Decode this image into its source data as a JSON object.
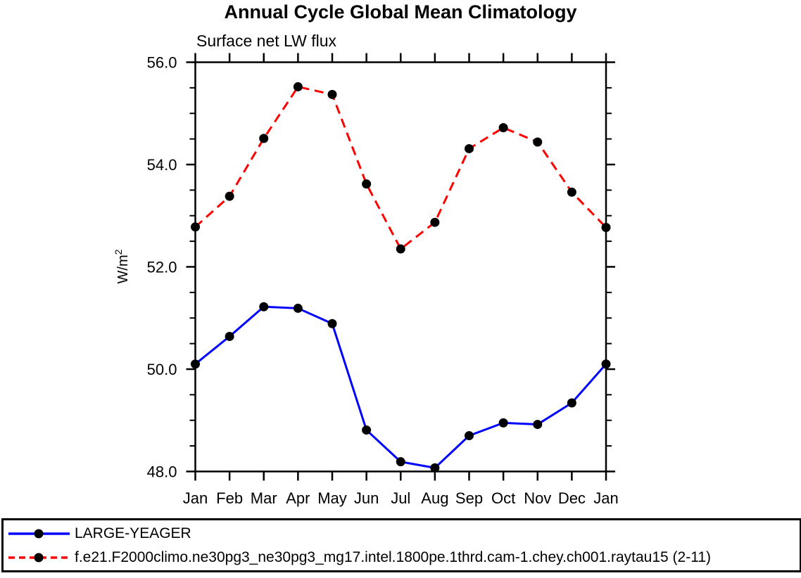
{
  "figure": {
    "background": "#ffffff",
    "axis_color": "#000000"
  },
  "chart_data": {
    "type": "line",
    "title": "Annual Cycle Global Mean Climatology",
    "subtitle": "Surface net LW flux",
    "ylabel_base": "W/m",
    "ylabel_superscript": "2",
    "categories": [
      "Jan",
      "Feb",
      "Mar",
      "Apr",
      "May",
      "Jun",
      "Jul",
      "Aug",
      "Sep",
      "Oct",
      "Nov",
      "Dec",
      "Jan"
    ],
    "ylim": [
      48.0,
      56.0
    ],
    "ytick_major": [
      48.0,
      50.0,
      52.0,
      54.0,
      56.0
    ],
    "ytick_labels": [
      "48.0",
      "50.0",
      "52.0",
      "54.0",
      "56.0"
    ],
    "yminor_step": 0.5,
    "grid": false,
    "legend_position": "bottom",
    "series": [
      {
        "name": "LARGE-YEAGER",
        "color": "#0000ff",
        "line_style": "solid",
        "marker": "filled-circle",
        "marker_color": "#000000",
        "values": [
          50.1,
          50.64,
          51.22,
          51.19,
          50.89,
          48.81,
          48.19,
          48.07,
          48.7,
          48.95,
          48.92,
          49.34,
          50.1
        ]
      },
      {
        "name": "f.e21.F2000climo.ne30pg3_ne30pg3_mg17.intel.1800pe.1thrd.cam-1.chey.ch001.raytau15 (2-11)",
        "color": "#ff0000",
        "line_style": "dashed",
        "marker": "filled-circle",
        "marker_color": "#000000",
        "values": [
          52.78,
          53.38,
          54.51,
          55.52,
          55.37,
          53.62,
          52.35,
          52.87,
          54.31,
          54.72,
          54.44,
          53.46,
          52.77
        ]
      }
    ]
  }
}
